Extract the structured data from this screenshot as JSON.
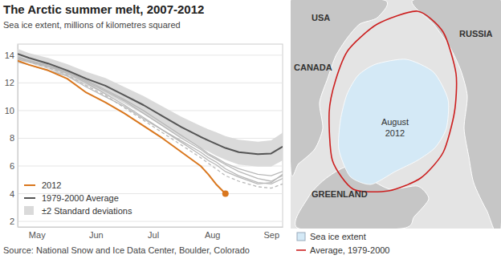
{
  "chart_data": {
    "type": "line",
    "title": "The Arctic summer melt, 2007-2012",
    "subtitle": "Sea ice extent, millions of kilometres squared",
    "source": "Source: National Snow and Ice Data Center, Boulder, Colorado",
    "x": [
      4,
      10,
      20,
      30,
      40,
      50,
      60,
      70,
      80,
      90,
      100,
      104,
      108,
      113,
      120,
      130,
      137,
      143
    ],
    "xlim": [
      4,
      143
    ],
    "xticks": [
      {
        "value": 14,
        "label": "May"
      },
      {
        "value": 45,
        "label": "Jun"
      },
      {
        "value": 75,
        "label": "Jul"
      },
      {
        "value": 106,
        "label": "Aug"
      },
      {
        "value": 137,
        "label": "Sep"
      }
    ],
    "ylim": [
      1.6,
      14.8
    ],
    "yticks": [
      2,
      4,
      6,
      8,
      10,
      12,
      14
    ],
    "grid": true,
    "legend": "lower left",
    "series": [
      {
        "name": "2012",
        "color": "#d9771e",
        "line_style": "solid",
        "marker": "end",
        "values": [
          13.6,
          13.3,
          12.9,
          12.3,
          11.3,
          10.6,
          9.8,
          8.9,
          8.0,
          7.0,
          6.0,
          5.4,
          4.7,
          4.0,
          null,
          null,
          null,
          null
        ]
      },
      {
        "name": "1979-2000 Average",
        "color": "#555555",
        "line_style": "solid",
        "values": [
          14.1,
          13.8,
          13.4,
          12.9,
          12.3,
          11.8,
          11.1,
          10.4,
          9.6,
          8.8,
          8.1,
          7.85,
          7.6,
          7.3,
          7.0,
          6.85,
          6.9,
          7.4
        ]
      },
      {
        "name": "±2 Standard deviations",
        "type": "band",
        "color": "#dadada",
        "upper": [
          14.45,
          14.15,
          13.8,
          13.35,
          12.8,
          12.35,
          11.7,
          11.05,
          10.3,
          9.55,
          8.9,
          8.65,
          8.45,
          8.15,
          7.9,
          7.75,
          7.85,
          8.4
        ],
        "lower": [
          13.75,
          13.45,
          13.0,
          12.45,
          11.8,
          11.25,
          10.5,
          9.75,
          8.9,
          8.05,
          7.3,
          7.05,
          6.75,
          6.45,
          6.1,
          5.95,
          5.95,
          6.4
        ]
      },
      {
        "color": "#b8b8b8",
        "line_style": "dashed",
        "values": [
          13.8,
          13.5,
          13.1,
          12.6,
          11.8,
          11.1,
          10.2,
          9.3,
          8.4,
          7.5,
          6.6,
          6.2,
          5.8,
          5.3,
          4.9,
          4.5,
          4.4,
          4.7
        ]
      },
      {
        "color": "#b8b8b8",
        "line_style": "solid",
        "values": [
          13.7,
          13.5,
          13.2,
          12.7,
          12.0,
          11.2,
          10.4,
          9.5,
          8.6,
          7.8,
          7.0,
          6.6,
          6.3,
          5.8,
          5.3,
          4.8,
          4.7,
          5.1
        ]
      },
      {
        "color": "#b8b8b8",
        "line_style": "solid",
        "values": [
          13.9,
          13.6,
          13.3,
          12.8,
          12.1,
          11.4,
          10.7,
          9.8,
          8.9,
          8.0,
          7.2,
          6.8,
          6.5,
          6.1,
          5.6,
          5.1,
          4.9,
          5.3
        ]
      },
      {
        "color": "#b8b8b8",
        "line_style": "solid",
        "values": [
          13.5,
          13.3,
          12.9,
          12.5,
          11.7,
          11.0,
          10.3,
          9.4,
          8.6,
          7.7,
          6.8,
          6.4,
          6.1,
          5.6,
          5.2,
          4.7,
          4.8,
          5.4
        ]
      },
      {
        "color": "#b8b8b8",
        "line_style": "solid",
        "values": [
          13.8,
          13.6,
          13.2,
          12.8,
          12.2,
          11.5,
          10.8,
          10.0,
          9.1,
          8.2,
          7.3,
          6.9,
          6.6,
          6.2,
          5.8,
          5.4,
          5.3,
          5.6
        ]
      }
    ]
  },
  "map": {
    "region_labels": [
      "USA",
      "CANADA",
      "RUSSIA",
      "GREENLAND"
    ],
    "ice_label": "August 2012",
    "key": [
      {
        "label": "Sea ice extent",
        "color": "#d4e9f6"
      },
      {
        "label": "Average, 1979-2000",
        "color": "#cc1f1f"
      }
    ]
  }
}
